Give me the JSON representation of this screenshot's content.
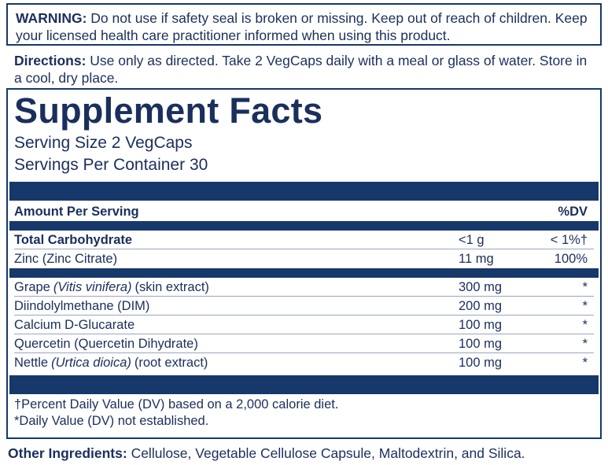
{
  "warning": {
    "label": "WARNING:",
    "text": "Do not use if safety seal is broken or missing. Keep out of reach of children. Keep your licensed health care practitioner informed when using this product."
  },
  "directions": {
    "label": "Directions:",
    "text": "Use only as directed. Take 2 VegCaps daily with a meal or glass of water. Store in a cool, dry place."
  },
  "facts": {
    "title": "Supplement Facts",
    "serving_size": "Serving Size 2 VegCaps",
    "servings_per_container": "Servings Per Container 30",
    "header": {
      "amount": "Amount Per Serving",
      "dv": "%DV"
    },
    "nutrients": [
      {
        "name": "Total Carbohydrate",
        "amount": "<1 g",
        "dv": "< 1%†"
      },
      {
        "name": "Zinc (Zinc Citrate)",
        "amount": "11 mg",
        "dv": "100%"
      }
    ],
    "ingredients": [
      {
        "name": "Grape",
        "latin": "(Vitis vinifera)",
        "note": "(skin extract)",
        "amount": "300 mg",
        "dv": "*"
      },
      {
        "name": "Diindolylmethane (DIM)",
        "amount": "200 mg",
        "dv": "*"
      },
      {
        "name": "Calcium D-Glucarate",
        "amount": "100 mg",
        "dv": "*"
      },
      {
        "name": "Quercetin (Quercetin Dihydrate)",
        "amount": "100 mg",
        "dv": "*"
      },
      {
        "name": "Nettle",
        "latin": "(Urtica dioica)",
        "note": "(root extract)",
        "amount": "100 mg",
        "dv": "*"
      }
    ],
    "footnotes": [
      "†Percent Daily Value (DV) based on a 2,000 calorie diet.",
      "*Daily Value (DV) not established."
    ]
  },
  "other_ingredients": {
    "label": "Other Ingredients:",
    "text": "Cellulose, Vegetable Cellulose Capsule, Maltodextrin, and Silica."
  }
}
